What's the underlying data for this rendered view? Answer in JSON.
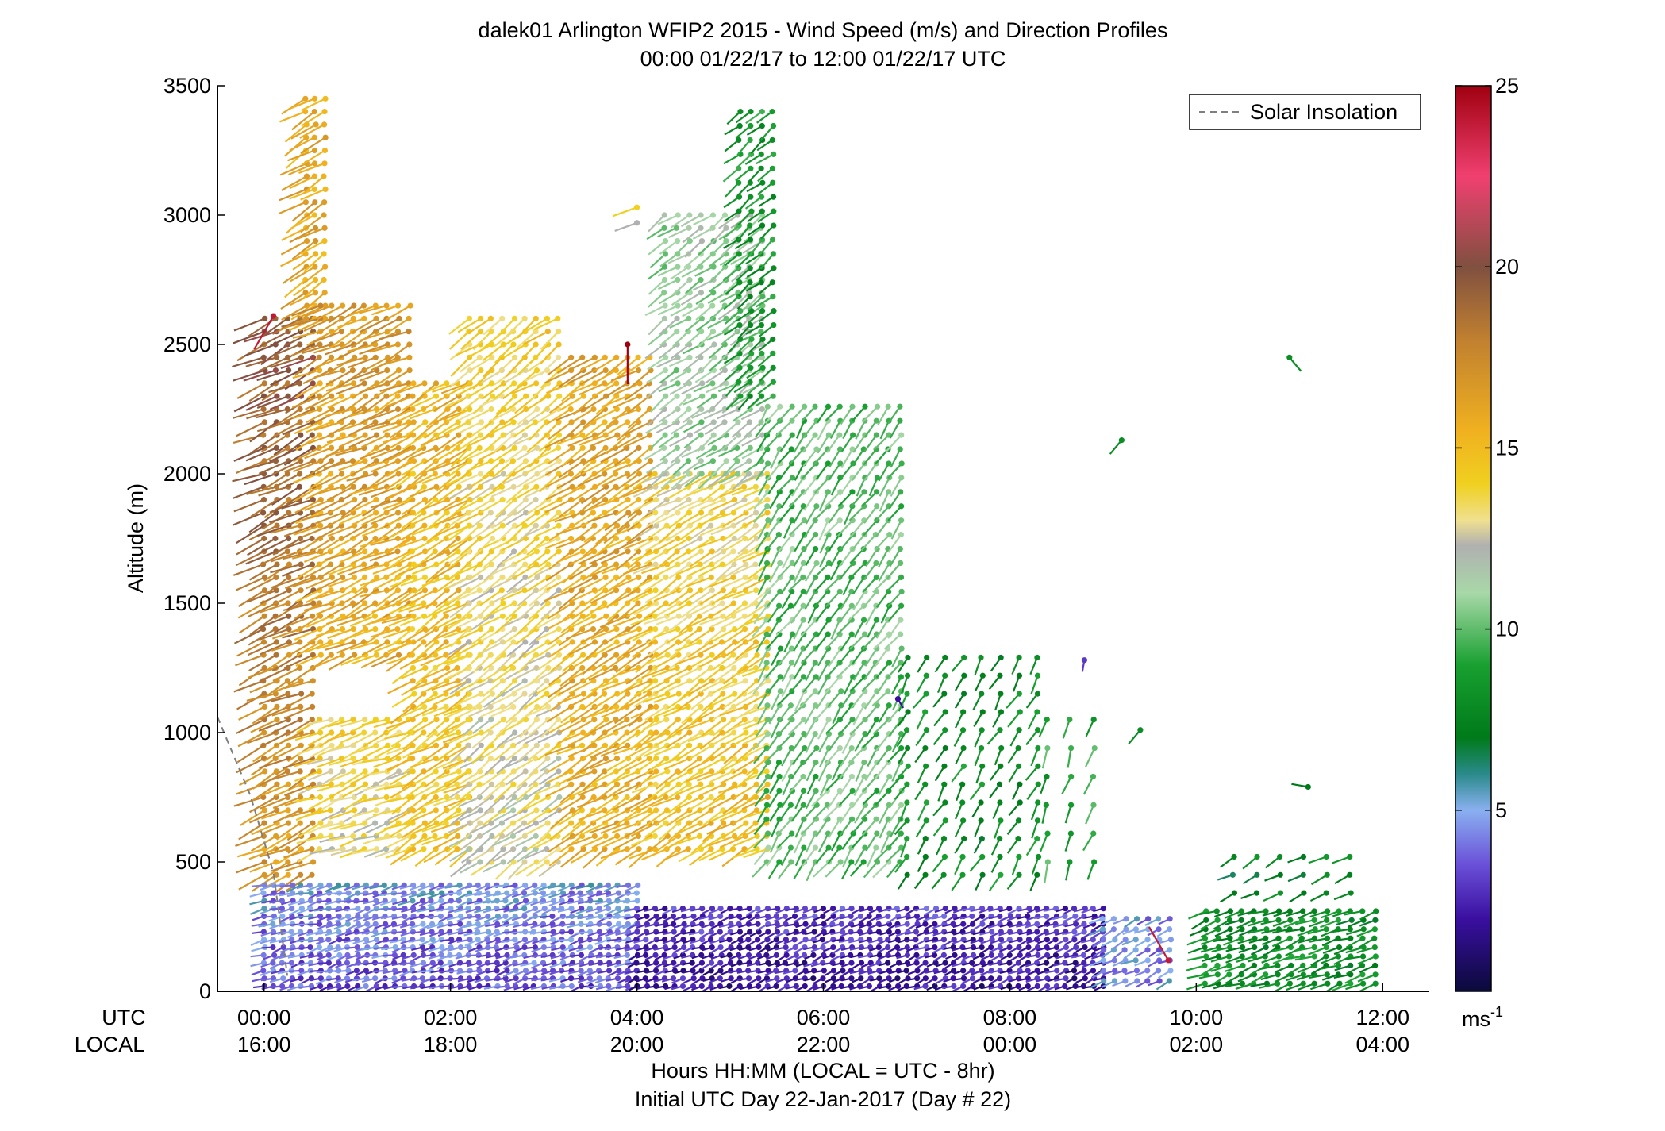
{
  "chart_data": {
    "type": "scatter",
    "title": "dalek01 Arlington WFIP2 2015 - Wind Speed (m/s) and Direction Profiles",
    "subtitle": "00:00 01/22/17 to 12:00 01/22/17  UTC",
    "ylabel": "Altitude (m)",
    "ylim": [
      0,
      3500
    ],
    "yticks": [
      0,
      500,
      1000,
      1500,
      2000,
      2500,
      3000,
      3500
    ],
    "xlim_hours": [
      -0.5,
      12.5
    ],
    "xtick_hours": [
      0,
      2,
      4,
      6,
      8,
      10,
      12
    ],
    "utc_row_label": "UTC",
    "local_row_label": "LOCAL",
    "utc_ticks": [
      "00:00",
      "02:00",
      "04:00",
      "06:00",
      "08:00",
      "10:00",
      "12:00"
    ],
    "local_ticks": [
      "16:00",
      "18:00",
      "20:00",
      "22:00",
      "00:00",
      "02:00",
      "04:00"
    ],
    "xlabel_line1": "Hours HH:MM  (LOCAL = UTC - 8hr)",
    "xlabel_line2": "Initial UTC Day 22-Jan-2017 (Day # 22)",
    "legend": {
      "label": "Solar Insolation",
      "placement": "top-right",
      "line_style": "dashed",
      "line_color": "#7f7f7f"
    },
    "solar_insolation": {
      "hours": [
        -0.5,
        -0.15,
        0.1,
        0.25
      ],
      "altitude_m": [
        1060,
        760,
        460,
        60
      ]
    },
    "colorbar": {
      "range": [
        0,
        25
      ],
      "ticks": [
        5,
        10,
        15,
        20,
        25
      ],
      "unit_label": "ms",
      "unit_exponent": "-1",
      "stops": [
        {
          "value": 0,
          "color": "#0a0a3a"
        },
        {
          "value": 2,
          "color": "#3a0fa0"
        },
        {
          "value": 3.5,
          "color": "#6a50d8"
        },
        {
          "value": 5,
          "color": "#8ab0f0"
        },
        {
          "value": 6,
          "color": "#2a8a8a"
        },
        {
          "value": 7,
          "color": "#007a1a"
        },
        {
          "value": 9,
          "color": "#18a030"
        },
        {
          "value": 11,
          "color": "#a8d8a8"
        },
        {
          "value": 12.3,
          "color": "#b0b0b0"
        },
        {
          "value": 13,
          "color": "#f0e090"
        },
        {
          "value": 14,
          "color": "#f0d020"
        },
        {
          "value": 15.5,
          "color": "#f0b020"
        },
        {
          "value": 18,
          "color": "#c08030"
        },
        {
          "value": 20,
          "color": "#805040"
        },
        {
          "value": 22.5,
          "color": "#f04070"
        },
        {
          "value": 25,
          "color": "#a00010"
        }
      ]
    },
    "profile_groups": [
      {
        "name": "upper-jet-early",
        "h0": 0.0,
        "h1": 0.6,
        "dh": 0.13,
        "a0": 450,
        "a1": 2600,
        "da": 50,
        "speed": 16.5,
        "speed_alt_slope": 0.0015,
        "direction_deg": 245
      },
      {
        "name": "upper-jet-high",
        "h0": 0.45,
        "h1": 0.65,
        "dh": 0.1,
        "a0": 2600,
        "a1": 3450,
        "da": 50,
        "speed": 16.0,
        "speed_alt_slope": 0.0,
        "direction_deg": 240
      },
      {
        "name": "upper-jet-main",
        "h0": 0.6,
        "h1": 1.6,
        "dh": 0.12,
        "a0": 1300,
        "a1": 2650,
        "da": 50,
        "speed": 15.8,
        "speed_alt_slope": 0.0008,
        "direction_deg": 245
      },
      {
        "name": "mid-mixed-early",
        "h0": 0.6,
        "h1": 1.6,
        "dh": 0.12,
        "a0": 550,
        "a1": 1050,
        "da": 50,
        "speed": 13.0,
        "speed_alt_slope": 0.002,
        "direction_deg": 250
      },
      {
        "name": "upper-jet-2",
        "h0": 1.6,
        "h1": 2.2,
        "dh": 0.12,
        "a0": 550,
        "a1": 2350,
        "da": 50,
        "speed": 14.5,
        "speed_alt_slope": 0.0005,
        "direction_deg": 240
      },
      {
        "name": "upper-mixed-3",
        "h0": 2.2,
        "h1": 3.2,
        "dh": 0.12,
        "a0": 500,
        "a1": 2600,
        "da": 50,
        "speed": 12.5,
        "speed_alt_slope": 0.0008,
        "direction_deg": 235
      },
      {
        "name": "upper-jet-4",
        "h0": 3.3,
        "h1": 4.2,
        "dh": 0.12,
        "a0": 550,
        "a1": 2450,
        "da": 50,
        "speed": 15.5,
        "speed_alt_slope": 0.0004,
        "direction_deg": 240
      },
      {
        "name": "upper-jet-5",
        "h0": 4.2,
        "h1": 5.4,
        "dh": 0.12,
        "a0": 550,
        "a1": 2000,
        "da": 50,
        "speed": 15.0,
        "speed_alt_slope": -0.001,
        "direction_deg": 240
      },
      {
        "name": "upper-green-5",
        "h0": 4.3,
        "h1": 5.4,
        "dh": 0.13,
        "a0": 2000,
        "a1": 3000,
        "da": 50,
        "speed": 11.0,
        "speed_alt_slope": 0.0,
        "direction_deg": 235
      },
      {
        "name": "upper-green-high",
        "h0": 5.1,
        "h1": 5.5,
        "dh": 0.12,
        "a0": 2300,
        "a1": 3450,
        "da": 55,
        "speed": 8.5,
        "speed_alt_slope": 0.0,
        "direction_deg": 230
      },
      {
        "name": "mid-green-6",
        "h0": 5.4,
        "h1": 6.9,
        "dh": 0.13,
        "a0": 500,
        "a1": 2300,
        "da": 55,
        "speed": 10.0,
        "speed_alt_slope": 0.0,
        "direction_deg": 215
      },
      {
        "name": "mid-green-7",
        "h0": 6.9,
        "h1": 8.4,
        "dh": 0.2,
        "a0": 450,
        "a1": 1300,
        "da": 70,
        "speed": 8.0,
        "speed_alt_slope": 0.0,
        "direction_deg": 210
      },
      {
        "name": "mid-sparse-9",
        "h0": 8.4,
        "h1": 9.1,
        "dh": 0.25,
        "a0": 500,
        "a1": 1100,
        "da": 110,
        "speed": 9.0,
        "speed_alt_slope": 0.0,
        "direction_deg": 200
      },
      {
        "name": "boundary-layer-1",
        "h0": 0.0,
        "h1": 4.0,
        "dh": 0.1,
        "a0": 20,
        "a1": 430,
        "da": 30,
        "speed": 3.5,
        "speed_alt_slope": 0.003,
        "direction_deg": 255
      },
      {
        "name": "boundary-layer-2",
        "h0": 4.0,
        "h1": 9.0,
        "dh": 0.1,
        "a0": 20,
        "a1": 340,
        "da": 30,
        "speed": 2.0,
        "speed_alt_slope": 0.003,
        "direction_deg": 250
      },
      {
        "name": "boundary-layer-3",
        "h0": 9.0,
        "h1": 9.8,
        "dh": 0.12,
        "a0": 40,
        "a1": 300,
        "da": 40,
        "speed": 4.5,
        "speed_alt_slope": 0.0,
        "direction_deg": 245
      },
      {
        "name": "late-green-lower",
        "h0": 10.1,
        "h1": 12.0,
        "dh": 0.13,
        "a0": 30,
        "a1": 320,
        "da": 35,
        "speed": 8.0,
        "speed_alt_slope": 0.0,
        "direction_deg": 250
      },
      {
        "name": "late-green-upper",
        "h0": 10.4,
        "h1": 11.8,
        "dh": 0.25,
        "a0": 380,
        "a1": 520,
        "da": 70,
        "speed": 7.5,
        "speed_alt_slope": 0.0,
        "direction_deg": 240
      }
    ],
    "isolated_barbs": [
      {
        "hour": 11.0,
        "alt": 2450,
        "speed": 8.0,
        "dir": 140
      },
      {
        "hour": 9.2,
        "alt": 2130,
        "speed": 8.0,
        "dir": 220
      },
      {
        "hour": 11.2,
        "alt": 790,
        "speed": 7.0,
        "dir": 280
      },
      {
        "hour": 9.4,
        "alt": 1010,
        "speed": 8.0,
        "dir": 220
      },
      {
        "hour": 3.9,
        "alt": 2500,
        "speed": 25.0,
        "dir": 180
      },
      {
        "hour": 0.1,
        "alt": 2610,
        "speed": 24.0,
        "dir": 210
      },
      {
        "hour": 4.0,
        "alt": 3030,
        "speed": 14.0,
        "dir": 250
      },
      {
        "hour": 4.0,
        "alt": 2970,
        "speed": 12.3,
        "dir": 250
      },
      {
        "hour": 8.8,
        "alt": 1280,
        "speed": 3.0,
        "dir": 190
      },
      {
        "hour": 6.8,
        "alt": 1130,
        "speed": 2.0,
        "dir": 150
      },
      {
        "hour": 9.7,
        "alt": 120,
        "speed": 24.0,
        "dir": 330
      }
    ]
  }
}
